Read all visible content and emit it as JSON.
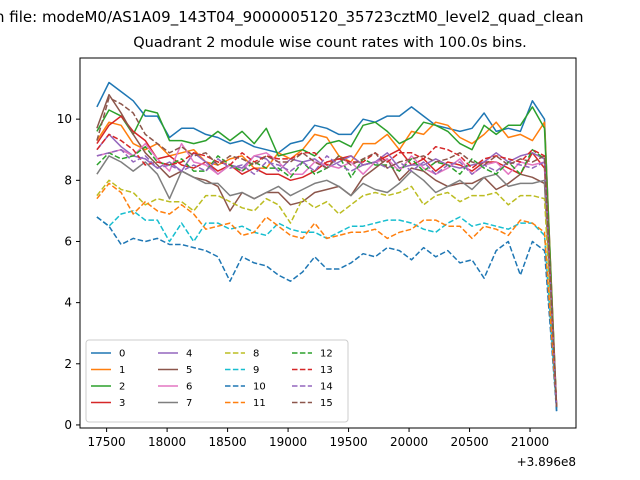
{
  "page_title": "n file: modeM0/AS1A09_143T04_9000005120_35723cztM0_level2_quad_clean",
  "chart_data": {
    "type": "line",
    "title": "Quadrant 2 module wise count rates with 100.0s bins.",
    "xlabel": "",
    "ylabel": "",
    "x_offset_label": "+3.896e8",
    "xlim": [
      17280,
      21380
    ],
    "ylim": [
      -0.1,
      12.0
    ],
    "xticks": [
      17500,
      18000,
      18500,
      19000,
      19500,
      20000,
      20500,
      21000
    ],
    "yticks": [
      0,
      2,
      4,
      6,
      8,
      10
    ],
    "grid": false,
    "legend_placement": "lower-left",
    "legend_ncol": 4,
    "x": [
      17420,
      17520,
      17620,
      17720,
      17820,
      17920,
      18020,
      18120,
      18220,
      18320,
      18420,
      18520,
      18620,
      18720,
      18820,
      18920,
      19020,
      19120,
      19220,
      19320,
      19420,
      19520,
      19620,
      19720,
      19820,
      19920,
      20020,
      20120,
      20220,
      20320,
      20420,
      20520,
      20620,
      20720,
      20820,
      20920,
      21020,
      21120,
      21220
    ],
    "series": [
      {
        "name": "0",
        "color": "#1f77b4",
        "dash": "solid",
        "values": [
          10.4,
          11.2,
          10.9,
          10.6,
          10.1,
          10.1,
          9.4,
          9.7,
          9.7,
          9.5,
          9.4,
          9.2,
          9.3,
          9.1,
          9.0,
          8.9,
          9.2,
          9.3,
          9.8,
          9.7,
          9.5,
          9.5,
          10.0,
          9.9,
          10.1,
          10.1,
          10.4,
          10.1,
          9.8,
          9.7,
          9.6,
          9.7,
          10.2,
          9.6,
          9.7,
          9.6,
          10.6,
          10.0,
          0.45
        ]
      },
      {
        "name": "1",
        "color": "#ff7f0e",
        "dash": "solid",
        "values": [
          9.3,
          9.9,
          9.8,
          9.2,
          9.0,
          9.2,
          8.8,
          8.9,
          9.0,
          8.6,
          8.5,
          8.7,
          8.8,
          8.4,
          8.4,
          8.9,
          8.7,
          9.0,
          9.5,
          9.4,
          8.8,
          8.6,
          9.2,
          9.2,
          9.5,
          9.0,
          9.6,
          9.5,
          9.9,
          9.8,
          9.4,
          9.2,
          9.5,
          9.9,
          9.4,
          9.5,
          9.3,
          9.9,
          0.6
        ]
      },
      {
        "name": "2",
        "color": "#2ca02c",
        "dash": "solid",
        "values": [
          9.6,
          10.3,
          10.1,
          9.5,
          10.3,
          10.2,
          9.3,
          9.3,
          9.2,
          9.3,
          9.6,
          9.3,
          9.6,
          9.2,
          9.7,
          8.8,
          8.9,
          9.0,
          8.8,
          9.2,
          9.3,
          9.1,
          9.8,
          9.9,
          9.6,
          9.2,
          9.4,
          9.9,
          9.8,
          9.6,
          9.2,
          9.0,
          9.8,
          9.5,
          9.8,
          9.8,
          10.4,
          9.7,
          0.6
        ]
      },
      {
        "name": "3",
        "color": "#d62728",
        "dash": "solid",
        "values": [
          9.2,
          9.8,
          10.1,
          9.6,
          9.3,
          8.7,
          8.8,
          8.5,
          8.4,
          8.6,
          8.3,
          8.5,
          8.2,
          8.4,
          8.2,
          8.2,
          8.0,
          8.1,
          8.3,
          8.6,
          8.7,
          8.8,
          8.5,
          8.6,
          8.8,
          9.0,
          8.5,
          8.7,
          8.3,
          8.6,
          8.5,
          8.3,
          8.6,
          8.6,
          8.4,
          8.2,
          8.9,
          8.4,
          0.55
        ]
      },
      {
        "name": "4",
        "color": "#9467bd",
        "dash": "solid",
        "values": [
          9.0,
          9.5,
          9.1,
          8.8,
          8.7,
          8.4,
          8.6,
          8.3,
          8.9,
          8.6,
          8.2,
          8.5,
          8.4,
          8.8,
          8.7,
          8.3,
          8.7,
          8.6,
          8.7,
          8.4,
          8.6,
          8.8,
          8.5,
          8.6,
          8.9,
          8.4,
          8.5,
          8.5,
          8.7,
          8.5,
          8.4,
          8.5,
          8.6,
          8.9,
          8.6,
          8.8,
          8.9,
          8.7,
          0.55
        ]
      },
      {
        "name": "5",
        "color": "#8c564b",
        "dash": "solid",
        "values": [
          9.7,
          10.8,
          10.2,
          9.5,
          8.9,
          8.5,
          8.1,
          8.3,
          8.1,
          8.0,
          7.8,
          7.0,
          7.6,
          7.4,
          7.6,
          7.6,
          7.2,
          7.3,
          7.6,
          7.7,
          7.8,
          7.5,
          8.1,
          8.4,
          8.7,
          8.0,
          8.4,
          8.3,
          8.0,
          7.8,
          7.9,
          7.9,
          8.1,
          7.7,
          7.9,
          8.2,
          8.1,
          7.9,
          0.55
        ]
      },
      {
        "name": "6",
        "color": "#e377c2",
        "dash": "solid",
        "values": [
          8.8,
          8.9,
          9.0,
          8.8,
          9.2,
          8.7,
          8.3,
          9.2,
          8.6,
          8.5,
          8.2,
          8.5,
          8.3,
          8.8,
          8.9,
          8.6,
          8.2,
          8.2,
          8.6,
          8.5,
          8.4,
          8.6,
          8.2,
          8.6,
          8.7,
          8.3,
          8.8,
          8.4,
          8.2,
          8.4,
          8.7,
          8.2,
          8.5,
          8.6,
          8.2,
          8.6,
          8.5,
          8.6,
          0.6
        ]
      },
      {
        "name": "7",
        "color": "#7f7f7f",
        "dash": "solid",
        "values": [
          8.2,
          8.8,
          8.6,
          8.3,
          8.6,
          8.2,
          7.4,
          8.3,
          8.1,
          7.9,
          7.9,
          7.5,
          7.6,
          7.4,
          7.6,
          7.8,
          7.5,
          7.7,
          7.9,
          8.0,
          7.8,
          7.5,
          7.9,
          7.7,
          7.6,
          7.9,
          8.3,
          8.0,
          7.6,
          7.8,
          8.0,
          7.7,
          8.1,
          8.2,
          7.8,
          7.9,
          7.9,
          8.0,
          0.55
        ]
      },
      {
        "name": "8",
        "color": "#bcbd22",
        "dash": "dashed",
        "values": [
          7.5,
          8.0,
          7.7,
          7.6,
          7.2,
          7.4,
          7.3,
          7.3,
          7.0,
          7.5,
          7.5,
          7.3,
          7.1,
          7.0,
          7.4,
          7.2,
          6.6,
          7.4,
          7.1,
          7.3,
          6.9,
          7.2,
          7.5,
          7.6,
          7.5,
          7.6,
          7.8,
          7.2,
          7.5,
          7.6,
          7.3,
          7.5,
          7.5,
          7.6,
          7.2,
          7.5,
          7.5,
          7.4,
          0.55
        ]
      },
      {
        "name": "9",
        "color": "#17becf",
        "dash": "dashed",
        "values": [
          6.8,
          6.5,
          6.9,
          7.0,
          6.7,
          6.7,
          6.0,
          6.6,
          6.0,
          6.6,
          6.6,
          6.4,
          6.5,
          6.3,
          6.2,
          6.6,
          6.4,
          6.3,
          6.3,
          6.1,
          6.3,
          6.5,
          6.5,
          6.6,
          6.7,
          6.7,
          6.6,
          6.4,
          6.3,
          6.6,
          6.8,
          6.5,
          6.6,
          6.5,
          6.4,
          6.6,
          6.6,
          6.2,
          0.5
        ]
      },
      {
        "name": "10",
        "color": "#1f77b4",
        "dash": "dashed",
        "values": [
          6.8,
          6.5,
          5.9,
          6.1,
          6.0,
          6.1,
          5.9,
          5.9,
          5.8,
          5.7,
          5.5,
          4.7,
          5.5,
          5.3,
          5.2,
          4.9,
          4.7,
          5.0,
          5.5,
          5.1,
          5.1,
          5.3,
          5.6,
          5.5,
          5.8,
          5.7,
          5.4,
          5.8,
          5.5,
          5.7,
          5.3,
          5.4,
          4.8,
          5.7,
          6.0,
          4.9,
          6.0,
          5.7,
          0.45
        ]
      },
      {
        "name": "11",
        "color": "#ff7f0e",
        "dash": "dashed",
        "values": [
          7.4,
          7.9,
          7.6,
          6.9,
          7.3,
          7.0,
          6.9,
          7.2,
          6.9,
          6.4,
          6.5,
          6.6,
          6.2,
          6.3,
          6.8,
          6.5,
          6.2,
          6.1,
          6.6,
          6.1,
          6.2,
          6.3,
          6.3,
          6.4,
          6.1,
          6.3,
          6.4,
          6.7,
          6.7,
          6.5,
          6.5,
          6.1,
          6.5,
          6.4,
          6.2,
          6.7,
          6.6,
          6.3,
          0.6
        ]
      },
      {
        "name": "12",
        "color": "#2ca02c",
        "dash": "dashed",
        "values": [
          8.5,
          8.9,
          8.7,
          8.8,
          9.1,
          8.6,
          8.5,
          8.7,
          8.3,
          8.3,
          8.8,
          8.5,
          8.3,
          8.6,
          8.4,
          8.4,
          8.1,
          8.6,
          8.2,
          8.4,
          8.8,
          8.1,
          8.7,
          8.5,
          8.5,
          8.3,
          8.7,
          8.3,
          8.6,
          8.5,
          8.2,
          8.7,
          8.4,
          8.2,
          8.6,
          8.2,
          9.0,
          8.7,
          0.6
        ]
      },
      {
        "name": "13",
        "color": "#d62728",
        "dash": "dashed",
        "values": [
          9.0,
          9.5,
          9.3,
          9.0,
          8.5,
          8.6,
          8.5,
          8.6,
          8.9,
          8.8,
          8.6,
          8.5,
          8.9,
          8.6,
          8.8,
          8.7,
          8.7,
          8.9,
          8.9,
          8.5,
          8.7,
          8.6,
          8.6,
          8.9,
          8.6,
          8.9,
          8.9,
          8.7,
          9.1,
          9.0,
          8.8,
          8.4,
          8.7,
          8.8,
          8.7,
          8.6,
          9.0,
          8.8,
          0.6
        ]
      },
      {
        "name": "14",
        "color": "#9467bd",
        "dash": "dashed",
        "values": [
          8.8,
          8.9,
          9.0,
          8.6,
          8.8,
          8.4,
          8.5,
          8.3,
          8.5,
          8.3,
          8.7,
          8.4,
          8.5,
          8.2,
          8.6,
          8.5,
          8.3,
          8.6,
          8.3,
          8.8,
          8.5,
          8.3,
          8.5,
          8.6,
          8.4,
          8.6,
          8.3,
          8.6,
          8.2,
          8.5,
          8.6,
          8.2,
          8.5,
          8.3,
          8.6,
          8.5,
          8.4,
          8.6,
          0.55
        ]
      },
      {
        "name": "15",
        "color": "#8c564b",
        "dash": "dashed",
        "values": [
          9.3,
          10.7,
          10.5,
          10.2,
          9.5,
          9.2,
          8.9,
          9.1,
          8.8,
          8.9,
          8.5,
          8.8,
          8.7,
          8.5,
          8.8,
          8.6,
          8.6,
          8.9,
          8.6,
          8.4,
          8.8,
          8.5,
          8.7,
          8.9,
          8.4,
          8.6,
          8.7,
          8.8,
          8.6,
          8.7,
          8.9,
          8.6,
          8.5,
          8.8,
          8.5,
          8.7,
          8.6,
          8.8,
          0.6
        ]
      }
    ]
  }
}
